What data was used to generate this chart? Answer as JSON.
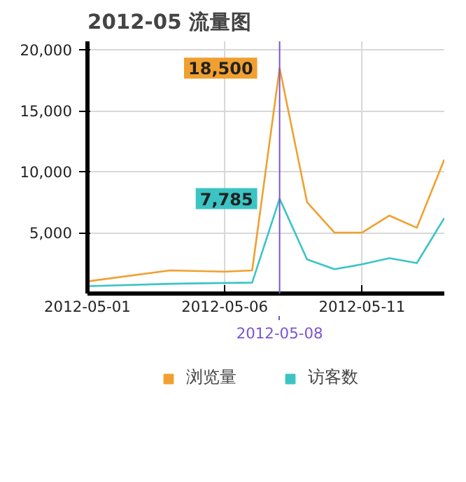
{
  "chart_data": {
    "type": "line",
    "title": "2012-05 流量图",
    "series": [
      {
        "name": "浏览量",
        "color": "#f0a030",
        "x": [
          "2012-05-01",
          "2012-05-04",
          "2012-05-06",
          "2012-05-07",
          "2012-05-08",
          "2012-05-09",
          "2012-05-10",
          "2012-05-11",
          "2012-05-12",
          "2012-05-13",
          "2012-05-14"
        ],
        "values": [
          1000,
          1900,
          1800,
          1900,
          18500,
          7500,
          5000,
          5000,
          6400,
          5400,
          11000
        ]
      },
      {
        "name": "访客数",
        "color": "#3cc4c4",
        "x": [
          "2012-05-01",
          "2012-05-04",
          "2012-05-07",
          "2012-05-08",
          "2012-05-09",
          "2012-05-10",
          "2012-05-11",
          "2012-05-12",
          "2012-05-13",
          "2012-05-14"
        ],
        "values": [
          600,
          800,
          900,
          7785,
          2800,
          2000,
          2400,
          2900,
          2500,
          6200
        ]
      }
    ],
    "xlim": [
      "2012-05-01",
      "2012-05-14"
    ],
    "xticks": [
      "2012-05-01",
      "2012-05-06",
      "2012-05-11"
    ],
    "ylim": [
      0,
      20700
    ],
    "yticks": [
      {
        "value": 5000,
        "label": "5,000"
      },
      {
        "value": 10000,
        "label": "10,000"
      },
      {
        "value": 15000,
        "label": "15,000"
      },
      {
        "value": 20000,
        "label": "20,000"
      }
    ],
    "ref_lines": [
      {
        "axis": "x",
        "value": "2012-05-08",
        "label": "2012-05-08",
        "color": "#7a55d0"
      }
    ],
    "annotations": [
      {
        "text": "18,500",
        "x": "2012-05-08",
        "y": 18500
      },
      {
        "text": "7,785",
        "x": "2012-05-08",
        "y": 7785
      }
    ],
    "grid": true,
    "legend": "bottom",
    "marker": "none",
    "line_style": "solid"
  }
}
